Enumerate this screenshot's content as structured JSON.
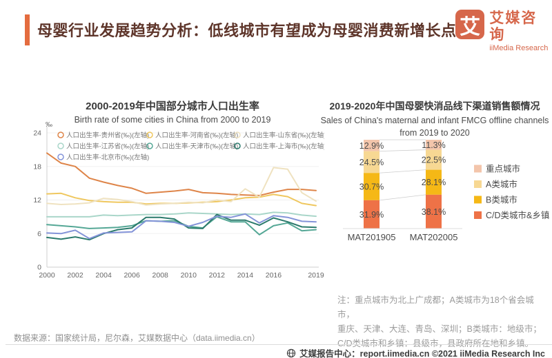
{
  "header": {
    "title": "母婴行业发展趋势分析：低线城市有望成为母婴消费新增长点",
    "accent_color": "#E46C3F",
    "logo_glyph": "艾",
    "brand_cn": "艾媒咨询",
    "brand_en": "iiMedia Research",
    "brand_color": "#D6674B"
  },
  "chart_data": [
    {
      "type": "line",
      "title": "2000-2019年中国部分城市人口出生率",
      "subtitle": "Birth rate of some cities in China from 2000 to 2019",
      "unit": "‰",
      "x": [
        2000,
        2001,
        2002,
        2003,
        2004,
        2005,
        2006,
        2007,
        2008,
        2009,
        2010,
        2011,
        2012,
        2013,
        2014,
        2015,
        2016,
        2017,
        2018,
        2019
      ],
      "x_tick_years": [
        2000,
        2002,
        2004,
        2006,
        2008,
        2010,
        2012,
        2014,
        2016,
        2019
      ],
      "ylim": [
        0,
        24
      ],
      "yticks": [
        0,
        6,
        12,
        18,
        24
      ],
      "grid": true,
      "legend_position": "top",
      "series": [
        {
          "name": "人口出生率-贵州省(‰)(左轴)",
          "color": "#DE8448",
          "values": [
            20.4,
            18.6,
            18.0,
            15.9,
            15.2,
            14.6,
            14.1,
            13.2,
            13.4,
            13.6,
            13.9,
            13.3,
            13.2,
            13.0,
            12.9,
            12.8,
            13.4,
            13.9,
            13.9,
            13.7
          ]
        },
        {
          "name": "人口出生率-河南省(‰)(左轴)",
          "color": "#EFC75E",
          "values": [
            13.1,
            13.2,
            12.4,
            11.9,
            11.7,
            11.6,
            11.6,
            11.3,
            11.4,
            11.4,
            11.5,
            11.6,
            11.7,
            12.0,
            12.4,
            12.5,
            13.0,
            12.6,
            11.4,
            11.0
          ]
        },
        {
          "name": "人口出生率-山东省(‰)(左轴)",
          "color": "#EFE2C0",
          "values": [
            11.4,
            11.2,
            11.3,
            11.5,
            12.3,
            12.1,
            11.7,
            11.1,
            11.3,
            11.4,
            11.6,
            11.5,
            12.0,
            11.7,
            14.0,
            12.5,
            17.8,
            17.5,
            13.3,
            11.8
          ]
        },
        {
          "name": "人口出生率-江苏省(‰)(左轴)",
          "color": "#A9D6C9",
          "values": [
            9.0,
            9.0,
            9.0,
            9.0,
            9.3,
            9.2,
            9.3,
            9.4,
            9.4,
            9.5,
            9.7,
            9.6,
            9.5,
            9.4,
            9.5,
            9.4,
            9.8,
            9.7,
            9.3,
            9.1
          ]
        },
        {
          "name": "人口出生率-天津市(‰)(左轴)",
          "color": "#54A795",
          "values": [
            7.6,
            7.4,
            7.2,
            6.9,
            7.0,
            7.1,
            7.4,
            8.3,
            8.2,
            8.3,
            7.3,
            7.0,
            9.0,
            8.1,
            8.1,
            5.8,
            7.4,
            7.9,
            6.5,
            6.7
          ]
        },
        {
          "name": "人口出生率-上海市(‰)(左轴)",
          "color": "#2B7A6C",
          "values": [
            5.3,
            5.0,
            5.4,
            4.9,
            6.0,
            6.7,
            7.0,
            8.9,
            8.9,
            8.6,
            7.0,
            6.9,
            9.4,
            8.4,
            8.4,
            7.5,
            8.8,
            8.1,
            7.2,
            7.1
          ]
        },
        {
          "name": "人口出生率-北京市(‰)(左轴)",
          "color": "#8393D8",
          "values": [
            6.1,
            6.0,
            6.6,
            5.1,
            6.1,
            6.2,
            6.3,
            8.3,
            8.2,
            8.0,
            7.3,
            8.0,
            9.1,
            8.9,
            9.5,
            7.9,
            9.2,
            8.9,
            8.2,
            8.1
          ]
        }
      ]
    },
    {
      "type": "bar",
      "stacked": true,
      "title": "2019-2020年中国母婴快消品线下渠道销售额情况",
      "subtitle_line1": "Sales of China's maternal and infant FMCG offline channels",
      "subtitle_line2": "from 2019 to 2020",
      "categories": [
        "MAT201905",
        "MAT202005"
      ],
      "value_suffix": "%",
      "legend_position": "right",
      "series": [
        {
          "name": "重点城市",
          "color": "#F3C5AB",
          "values": [
            12.9,
            11.3
          ]
        },
        {
          "name": "A类城市",
          "color": "#F7D893",
          "values": [
            24.5,
            22.5
          ]
        },
        {
          "name": "B类城市",
          "color": "#F5B816",
          "values": [
            30.7,
            28.1
          ]
        },
        {
          "name": "C/D类城市&乡镇",
          "color": "#EE7247",
          "values": [
            31.9,
            38.1
          ]
        }
      ]
    }
  ],
  "notes": {
    "line1": "注：重点城市为北上广成都；A类城市为18个省会城市，",
    "line2": "重庆、天津、大连、青岛、深圳；B类城市：地级市；",
    "line3": "C/D类城市和乡镇：县级市，县政府所在地和乡镇。"
  },
  "source_text": "数据来源：国家统计局，尼尔森，艾媒数据中心（data.iimedia.cn）",
  "footer_text": "艾媒报告中心：report.iimedia.cn  ©2021  iiMedia Research Inc"
}
